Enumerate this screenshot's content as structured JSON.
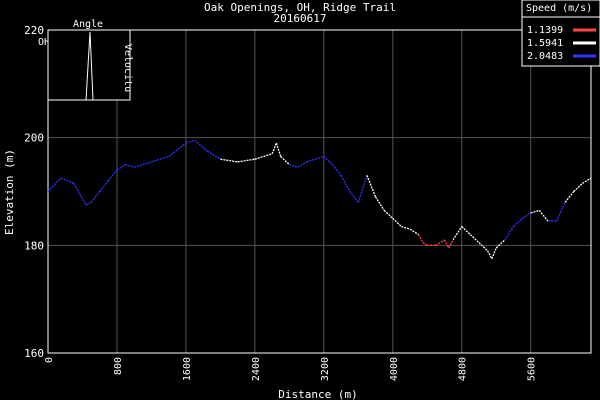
{
  "chart_data": {
    "type": "line",
    "title": "Oak Openings, OH, Ridge Trail",
    "subtitle": "20160617",
    "xlabel": "Distance (m)",
    "ylabel": "Elevation (m)",
    "xlim": [
      0,
      6300
    ],
    "ylim": [
      160,
      220
    ],
    "xticks": [
      0,
      800,
      1600,
      2400,
      3200,
      4000,
      4800,
      5600
    ],
    "yticks": [
      160,
      180,
      200,
      220
    ],
    "grid": true,
    "legend": {
      "title": "Speed (m/s)",
      "placement": "top-right",
      "entries": [
        {
          "label": "1.1399",
          "color": "#ff4444"
        },
        {
          "label": "1.5941",
          "color": "#ffffff"
        },
        {
          "label": "2.0483",
          "color": "#3333ff"
        }
      ]
    },
    "x": [
      0,
      150,
      300,
      440,
      500,
      600,
      700,
      800,
      900,
      1000,
      1200,
      1400,
      1600,
      1700,
      1850,
      2000,
      2200,
      2400,
      2600,
      2650,
      2700,
      2800,
      2900,
      3000,
      3200,
      3300,
      3400,
      3500,
      3600,
      3700,
      3800,
      3900,
      4000,
      4100,
      4200,
      4300,
      4350,
      4400,
      4500,
      4600,
      4650,
      4700,
      4800,
      4900,
      5000,
      5100,
      5150,
      5200,
      5300,
      5400,
      5500,
      5600,
      5700,
      5800,
      5900,
      6000,
      6100,
      6200,
      6300
    ],
    "y": [
      190,
      192.5,
      191.5,
      187.5,
      188,
      190,
      192,
      194,
      195,
      194.5,
      195.5,
      196.5,
      199,
      199.5,
      197.5,
      196,
      195.5,
      196,
      197,
      199,
      196.5,
      195,
      194.5,
      195.5,
      196.5,
      195,
      193,
      190,
      188,
      193,
      189,
      186.5,
      185,
      183.5,
      183,
      182,
      180.5,
      180,
      180,
      181,
      179.5,
      181,
      183.5,
      182,
      180.5,
      179,
      177.5,
      179.5,
      181,
      183.5,
      185,
      186,
      186.5,
      184.5,
      184.5,
      188,
      190,
      191.5,
      192.5
    ],
    "speed_class": [
      "2.0483",
      "2.0483",
      "2.0483",
      "2.0483",
      "2.0483",
      "2.0483",
      "2.0483",
      "2.0483",
      "2.0483",
      "2.0483",
      "2.0483",
      "2.0483",
      "2.0483",
      "2.0483",
      "2.0483",
      "2.0483",
      "1.5941",
      "1.5941",
      "1.5941",
      "1.5941",
      "1.5941",
      "1.5941",
      "2.0483",
      "2.0483",
      "2.0483",
      "2.0483",
      "2.0483",
      "2.0483",
      "2.0483",
      "2.0483",
      "1.5941",
      "1.5941",
      "1.5941",
      "1.5941",
      "1.5941",
      "1.5941",
      "1.1399",
      "1.1399",
      "1.1399",
      "1.1399",
      "1.1399",
      "1.1399",
      "1.5941",
      "1.5941",
      "1.5941",
      "1.5941",
      "1.5941",
      "1.5941",
      "1.5941",
      "2.0483",
      "2.0483",
      "2.0483",
      "1.5941",
      "1.5941",
      "2.0483",
      "2.0483",
      "1.5941",
      "1.5941",
      "1.5941"
    ]
  },
  "inset": {
    "title": "Angle",
    "side_label": "Velocitu",
    "corner_label": "OH"
  }
}
